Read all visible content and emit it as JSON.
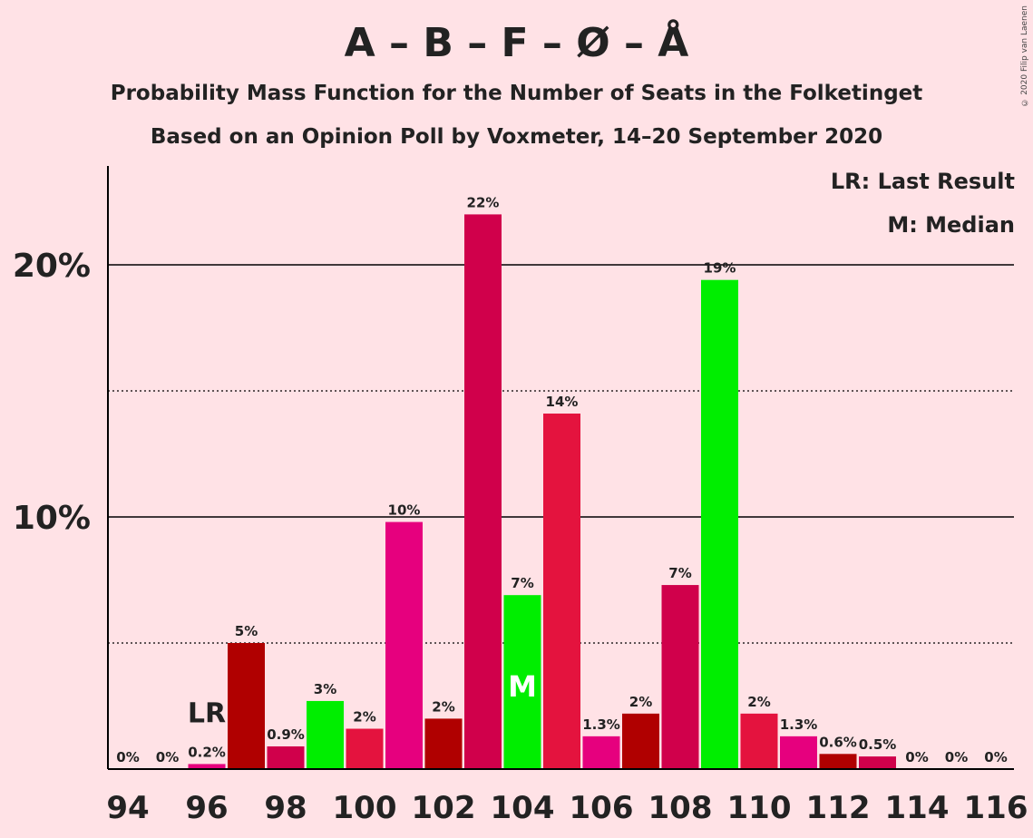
{
  "header": {
    "title": "A – B – F – Ø – Å",
    "subtitle1": "Probability Mass Function for the Number of Seats in the Folketinget",
    "subtitle2": "Based on an Opinion Poll by Voxmeter, 14–20 September 2020",
    "copyright": "© 2020 Filip van Laenen"
  },
  "legend": {
    "last_result": "LR: Last Result",
    "median": "M: Median"
  },
  "chart_data": {
    "type": "bar",
    "title": "A – B – F – Ø – Å",
    "xlabel": "",
    "ylabel": "",
    "ylim": [
      0,
      24
    ],
    "y_ticks": [
      10,
      20
    ],
    "y_tick_labels": [
      "10%",
      "20%"
    ],
    "x_tick_labels": [
      "94",
      "96",
      "98",
      "100",
      "102",
      "104",
      "106",
      "108",
      "110",
      "112",
      "114",
      "116"
    ],
    "categories": [
      94,
      95,
      96,
      97,
      98,
      99,
      100,
      101,
      102,
      103,
      104,
      105,
      106,
      107,
      108,
      109,
      110,
      111,
      112,
      113,
      114,
      115,
      116
    ],
    "values": [
      0,
      0,
      0.2,
      5.0,
      0.9,
      2.7,
      1.6,
      9.8,
      2.0,
      22.0,
      6.9,
      14.1,
      1.3,
      2.2,
      7.3,
      19.4,
      2.2,
      1.3,
      0.6,
      0.5,
      0,
      0,
      0
    ],
    "labels": [
      "0%",
      "0%",
      "0.2%",
      "5%",
      "0.9%",
      "3%",
      "2%",
      "10%",
      "2%",
      "22%",
      "7%",
      "14%",
      "1.3%",
      "2%",
      "7%",
      "19%",
      "2%",
      "1.3%",
      "0.6%",
      "0.5%",
      "0%",
      "0%",
      "0%"
    ],
    "colors": [
      "#C00055",
      "#C00055",
      "#E6007E",
      "#B00000",
      "#D0004B",
      "#00EE00",
      "#E4133E",
      "#E6007E",
      "#B00000",
      "#D0004B",
      "#00EE00",
      "#E4133E",
      "#E6007E",
      "#B00000",
      "#D0004B",
      "#00EE00",
      "#E4133E",
      "#E6007E",
      "#B00000",
      "#D0004B",
      "#00EE00",
      "#E4133E",
      "#E6007E"
    ],
    "last_result": {
      "seat": 96,
      "label": "LR"
    },
    "median": {
      "seat": 104,
      "label": "M"
    },
    "grid": "dotted at 5% steps, solid at 10% steps",
    "legend_position": "top-right"
  }
}
